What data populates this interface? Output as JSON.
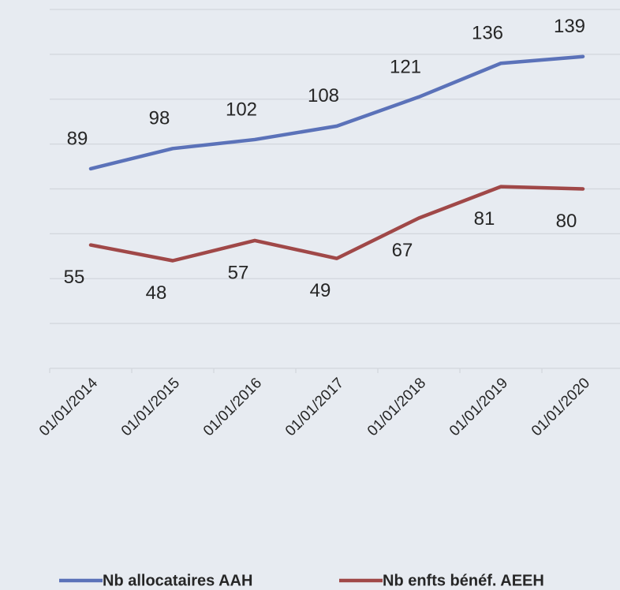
{
  "chart_data": {
    "type": "line",
    "categories": [
      "01/01/2014",
      "01/01/2015",
      "01/01/2016",
      "01/01/2017",
      "01/01/2018",
      "01/01/2019",
      "01/01/2020"
    ],
    "series": [
      {
        "name": "Nb allocataires AAH",
        "color": "#5b72b9",
        "values": [
          89,
          98,
          102,
          108,
          121,
          136,
          139
        ]
      },
      {
        "name": "Nb enfts bénéf. AEEH",
        "color": "#a04848",
        "values": [
          55,
          48,
          57,
          49,
          67,
          81,
          80
        ]
      }
    ],
    "ylim": [
      0,
      160
    ],
    "yticks": [
      0,
      20,
      40,
      60,
      80,
      100,
      120,
      140,
      160
    ],
    "grid": true,
    "legend": "bottom"
  }
}
